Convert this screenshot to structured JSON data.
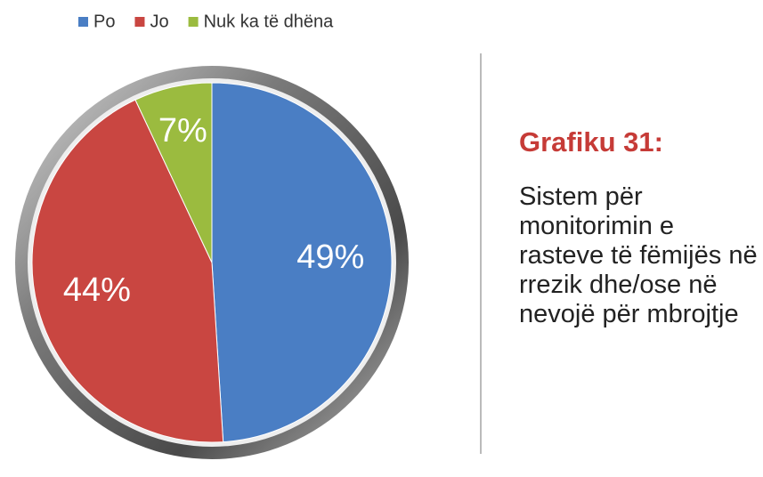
{
  "chart_data": {
    "type": "pie",
    "title": "Grafiku 31:",
    "subtitle": "Sistem për monitorimin e rasteve të fëmijës në rrezik dhe/ose në nevojë për mbrojtje",
    "categories": [
      "Po",
      "Jo",
      "Nuk ka të dhëna"
    ],
    "values": [
      49,
      44,
      7
    ],
    "value_labels": [
      "49%",
      "44%",
      "7%"
    ],
    "colors": [
      "#4a7ec4",
      "#c94641",
      "#9bbb3f"
    ],
    "legend": "top"
  }
}
